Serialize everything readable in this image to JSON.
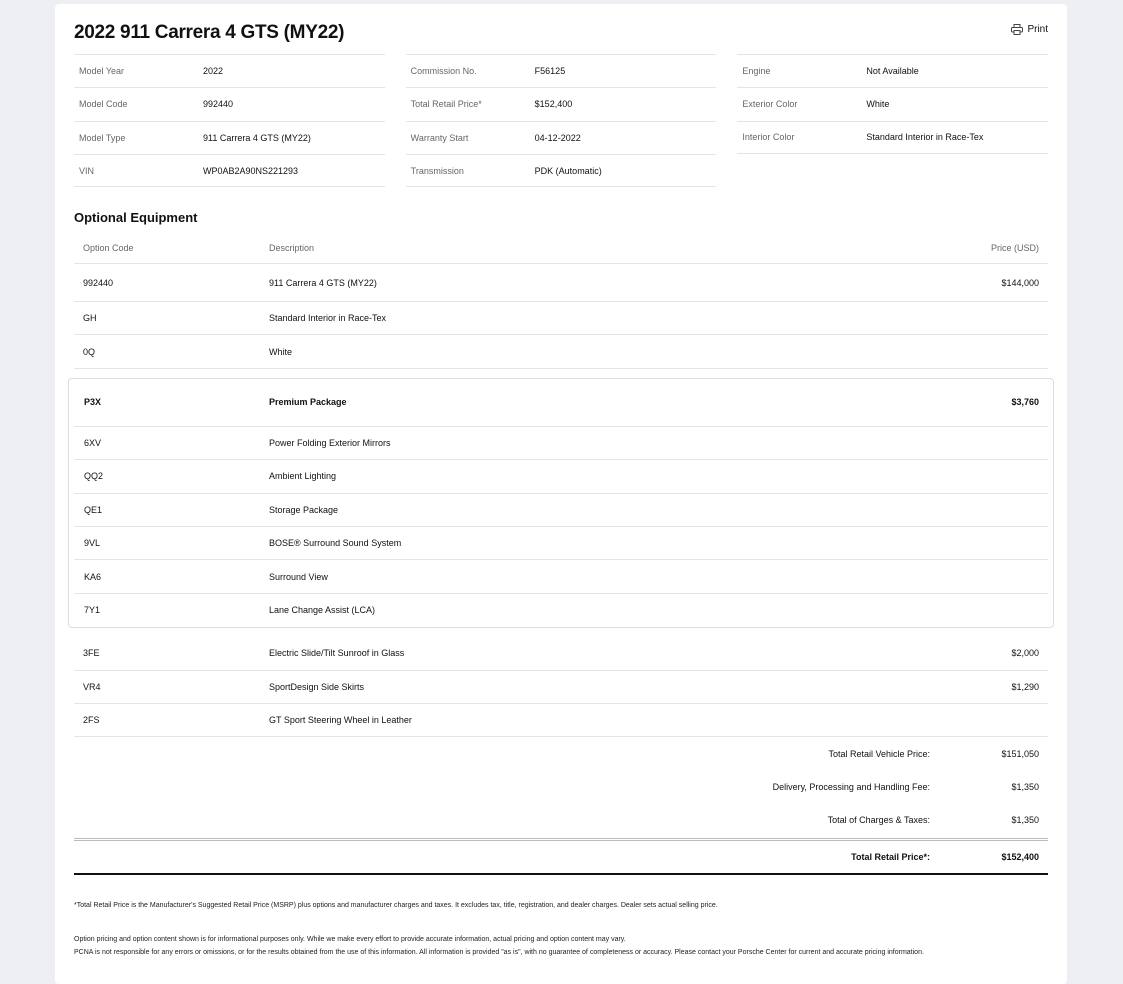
{
  "title": "2022 911 Carrera 4 GTS (MY22)",
  "print_label": "Print",
  "specs": [
    [
      {
        "k": "Model Year",
        "v": "2022"
      },
      {
        "k": "Model Code",
        "v": "992440"
      },
      {
        "k": "Model Type",
        "v": "911 Carrera 4 GTS (MY22)"
      },
      {
        "k": "VIN",
        "v": "WP0AB2A90NS221293"
      }
    ],
    [
      {
        "k": "Commission No.",
        "v": "F56125"
      },
      {
        "k": "Total Retail Price*",
        "v": "$152,400"
      },
      {
        "k": "Warranty Start",
        "v": "04-12-2022"
      },
      {
        "k": "Transmission",
        "v": "PDK (Automatic)"
      }
    ],
    [
      {
        "k": "Engine",
        "v": "Not Available"
      },
      {
        "k": "Exterior Color",
        "v": "White"
      },
      {
        "k": "Interior Color",
        "v": "Standard Interior in Race-Tex"
      }
    ]
  ],
  "optional_equipment": {
    "heading": "Optional Equipment",
    "columns": [
      "Option Code",
      "Description",
      "Price (USD)"
    ],
    "rows_before": [
      {
        "code": "992440",
        "desc": "911 Carrera 4 GTS (MY22)",
        "price": "$144,000"
      },
      {
        "code": "GH",
        "desc": "Standard Interior in Race-Tex",
        "price": ""
      },
      {
        "code": "0Q",
        "desc": "White",
        "price": ""
      }
    ],
    "package": {
      "code": "P3X",
      "desc": "Premium Package",
      "price": "$3,760",
      "items": [
        {
          "code": "6XV",
          "desc": "Power Folding Exterior Mirrors"
        },
        {
          "code": "QQ2",
          "desc": "Ambient Lighting"
        },
        {
          "code": "QE1",
          "desc": "Storage Package"
        },
        {
          "code": "9VL",
          "desc": "BOSE® Surround Sound System"
        },
        {
          "code": "KA6",
          "desc": "Surround View"
        },
        {
          "code": "7Y1",
          "desc": "Lane Change Assist (LCA)"
        }
      ]
    },
    "rows_after": [
      {
        "code": "3FE",
        "desc": "Electric Slide/Tilt Sunroof in Glass",
        "price": "$2,000"
      },
      {
        "code": "VR4",
        "desc": "SportDesign Side Skirts",
        "price": "$1,290"
      },
      {
        "code": "2FS",
        "desc": "GT Sport Steering Wheel in Leather",
        "price": ""
      }
    ]
  },
  "totals": [
    {
      "label": "Total Retail Vehicle Price:",
      "amount": "$151,050"
    },
    {
      "label": "Delivery, Processing and Handling Fee:",
      "amount": "$1,350"
    },
    {
      "label": "Total of Charges & Taxes:",
      "amount": "$1,350"
    }
  ],
  "final_total": {
    "label": "Total Retail Price*:",
    "amount": "$152,400"
  },
  "footnotes": [
    "*Total Retail Price is the Manufacturer's Suggested Retail Price (MSRP) plus options and manufacturer charges and taxes. It excludes tax, title, registration, and dealer charges. Dealer sets actual selling price.",
    "Option pricing and option content shown is for informational purposes only. While we make every effort to provide accurate information, actual pricing and option content may vary.",
    "PCNA is not responsible for any errors or omissions, or for the results obtained from the use of this information. All information is provided \"as is\", with no guarantee of completeness or accuracy. Please contact your Porsche Center for current and accurate pricing information."
  ]
}
